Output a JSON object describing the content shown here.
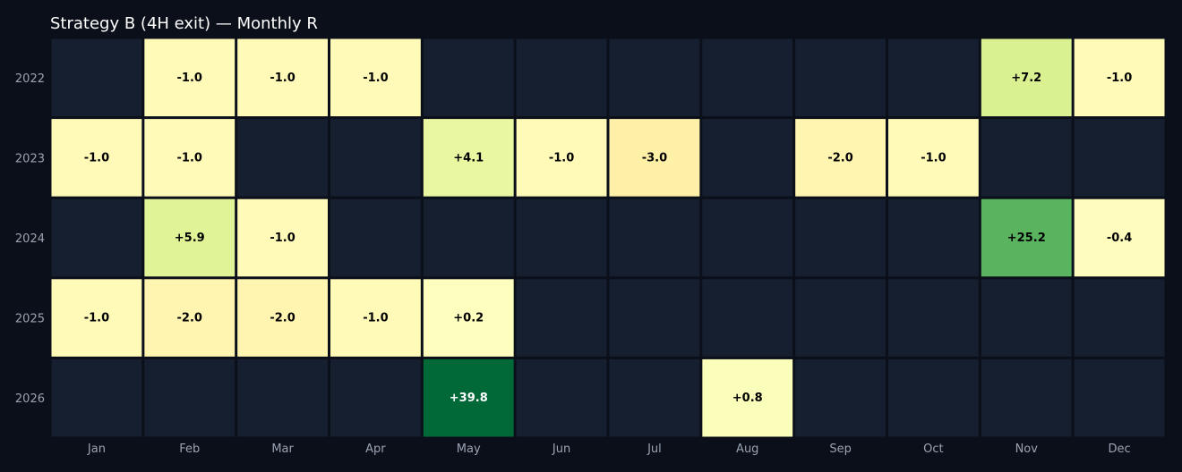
{
  "chart_data": {
    "type": "heatmap",
    "title": "Strategy B (4H exit) — Monthly R",
    "x_categories": [
      "Jan",
      "Feb",
      "Mar",
      "Apr",
      "May",
      "Jun",
      "Jul",
      "Aug",
      "Sep",
      "Oct",
      "Nov",
      "Dec"
    ],
    "y_categories": [
      "2022",
      "2023",
      "2024",
      "2025",
      "2026"
    ],
    "values": [
      [
        null,
        -1.0,
        -1.0,
        -1.0,
        null,
        null,
        null,
        null,
        null,
        null,
        7.2,
        -1.0
      ],
      [
        -1.0,
        -1.0,
        null,
        null,
        4.1,
        -1.0,
        -3.0,
        null,
        -2.0,
        -1.0,
        null,
        null
      ],
      [
        null,
        5.9,
        -1.0,
        null,
        null,
        null,
        null,
        null,
        null,
        null,
        25.2,
        -0.4
      ],
      [
        -1.0,
        -2.0,
        -2.0,
        -1.0,
        0.2,
        null,
        null,
        null,
        null,
        null,
        null,
        null
      ],
      [
        null,
        null,
        null,
        null,
        39.8,
        null,
        null,
        0.8,
        null,
        null,
        null,
        null
      ]
    ],
    "labels": [
      [
        "",
        "-1.0",
        "-1.0",
        "-1.0",
        "",
        "",
        "",
        "",
        "",
        "",
        "+7.2",
        "-1.0"
      ],
      [
        "-1.0",
        "-1.0",
        "",
        "",
        "+4.1",
        "-1.0",
        "-3.0",
        "",
        "-2.0",
        "-1.0",
        "",
        ""
      ],
      [
        "",
        "+5.9",
        "-1.0",
        "",
        "",
        "",
        "",
        "",
        "",
        "",
        "+25.2",
        "-0.4"
      ],
      [
        "-1.0",
        "-2.0",
        "-2.0",
        "-1.0",
        "+0.2",
        "",
        "",
        "",
        "",
        "",
        "",
        ""
      ],
      [
        "",
        "",
        "",
        "",
        "+39.8",
        "",
        "",
        "+0.8",
        "",
        "",
        "",
        ""
      ]
    ],
    "colors": {
      "background": "#0b0f19",
      "empty_cell": "#161f30",
      "scale_low": "#fff3b0",
      "scale_mid": "#ffffc0",
      "scale_high": "#006837"
    }
  }
}
